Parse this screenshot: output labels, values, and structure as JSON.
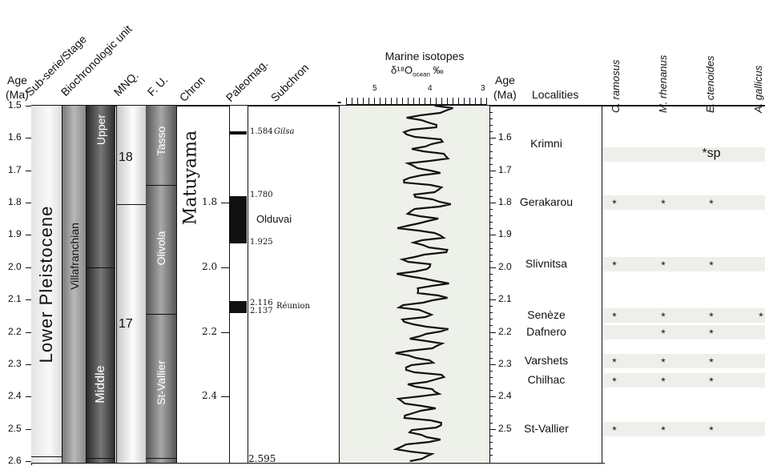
{
  "headers": {
    "age": "Age",
    "age_unit": "(Ma)",
    "subseries": "Sub-serie/Stage",
    "biochron": "Biochronologic unit",
    "mnq": "MNQ.",
    "fu": "F. U.",
    "chron": "Chron",
    "paleomag": "Paleomag.",
    "subchron": "Subchron",
    "isotopes_title": "Marine isotopes",
    "isotopes_sub": "δ¹⁸O",
    "isotopes_sub2": "ocean",
    "isotopes_unit": "‰",
    "age2": "Age",
    "age2_unit": "(Ma)",
    "localities": "Localities"
  },
  "species": [
    "C. ramosus",
    "M. rhenanus",
    "E. ctenoides",
    "A. gallicus"
  ],
  "age_ticks": [
    "1.5",
    "1.6",
    "1.7",
    "1.8",
    "1.9",
    "2.0",
    "2.1",
    "2.2",
    "2.3",
    "2.4",
    "2.5",
    "2.6"
  ],
  "age_ticks_right": [
    "1.6",
    "1.7",
    "1.8",
    "1.9",
    "2.0",
    "2.1",
    "2.2",
    "2.3",
    "2.4",
    "2.5"
  ],
  "isotope_axis": {
    "ticks": [
      "5",
      "4",
      "3"
    ],
    "min_label": "-"
  },
  "columns": {
    "series": "Lower Pleistocene",
    "stage": "Villafranchian",
    "biochron_upper": "Upper",
    "biochron_middle": "Middle",
    "mnq_18": "18",
    "mnq_17": "17",
    "fu_tasso": "Tasso",
    "fu_olivola": "Olivola",
    "fu_stvallier": "St-Vallier",
    "chron_name": "Matuyama"
  },
  "chron_ages": [
    "1.8",
    "2.0",
    "2.2",
    "2.4"
  ],
  "subchrons": {
    "gilsa_age": "1.584",
    "gilsa_name": "Gilsa",
    "olduvai_top": "1.780",
    "olduvai_name": "Olduvai",
    "olduvai_bottom": "1.925",
    "reunion_top": "2.116",
    "reunion_bottom": "2.137",
    "reunion_name": "Réunion",
    "base": "2.595"
  },
  "localities": [
    {
      "name": "Krimni",
      "age": 1.65,
      "marks": [
        "",
        "",
        "*sp",
        ""
      ]
    },
    {
      "name": "Gerakarou",
      "age": 1.8,
      "marks": [
        "*",
        "*",
        "*",
        ""
      ]
    },
    {
      "name": "Slivnitsa",
      "age": 1.99,
      "marks": [
        "*",
        "*",
        "*",
        ""
      ]
    },
    {
      "name": "Senèze",
      "age": 2.15,
      "marks": [
        "*",
        "*",
        "*",
        "*"
      ]
    },
    {
      "name": "Dafnero",
      "age": 2.2,
      "marks": [
        "",
        "*",
        "*",
        ""
      ]
    },
    {
      "name": "Varshets",
      "age": 2.29,
      "marks": [
        "*",
        "*",
        "*",
        ""
      ]
    },
    {
      "name": "Chilhac",
      "age": 2.35,
      "marks": [
        "*",
        "*",
        "*",
        ""
      ]
    },
    {
      "name": "St-Vallier",
      "age": 2.5,
      "marks": [
        "*",
        "*",
        "*",
        ""
      ]
    }
  ],
  "colors": {
    "isotope_bg": "#eef0ea",
    "band": "#edf0ea",
    "dark": "#1a1a1a"
  }
}
